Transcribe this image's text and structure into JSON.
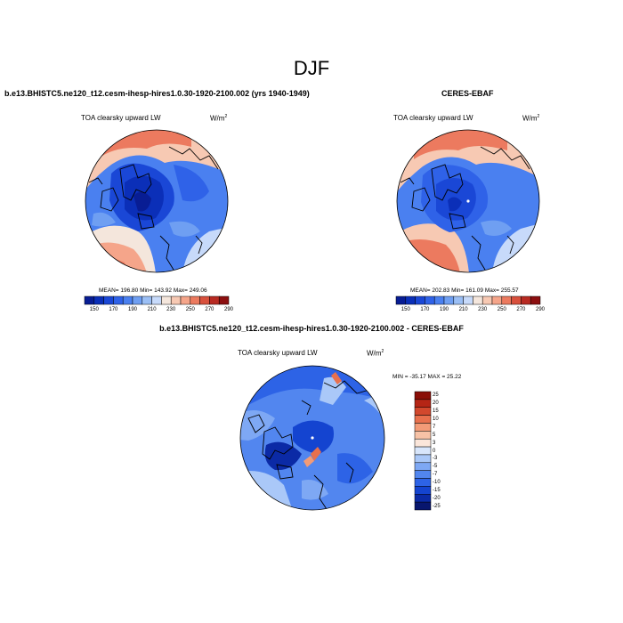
{
  "main_title": "DJF",
  "colors": {
    "abs_palette": [
      "#081d94",
      "#0b2fb8",
      "#1a47d6",
      "#2f62e8",
      "#4a80f0",
      "#6f9ff2",
      "#9bbff5",
      "#c7dafa",
      "#f4e6dc",
      "#f7c9b3",
      "#f5a58a",
      "#ec7a5f",
      "#d8503c",
      "#b82a22",
      "#8c0f10"
    ],
    "diff_palette": [
      "#08166e",
      "#0b2aa6",
      "#1444d0",
      "#2d63e6",
      "#5286ef",
      "#7ea8f4",
      "#aac8f8",
      "#d8e6fb",
      "#fbe6da",
      "#f7c2a6",
      "#f39b77",
      "#e8704d",
      "#d2482d",
      "#b52515",
      "#8a0e07"
    ]
  },
  "panels": {
    "left": {
      "title": "b.e13.BHISTC5.ne120_t12.cesm-ihesp-hires1.0.30-1920-2100.002 (yrs 1940-1949)",
      "variable": "TOA clearsky upward LW",
      "units": "W/m",
      "units_sup": "2",
      "stats": "MEAN= 196.80  Min= 143.92  Max= 249.06"
    },
    "right": {
      "title": "CERES-EBAF",
      "variable": "TOA clearsky upward LW",
      "units": "W/m",
      "units_sup": "2",
      "stats": "MEAN= 202.83  Min= 161.09  Max= 255.57"
    },
    "diff": {
      "title": "b.e13.BHISTC5.ne120_t12.cesm-ihesp-hires1.0.30-1920-2100.002 - CERES-EBAF",
      "variable": "TOA clearsky upward LW",
      "units": "W/m",
      "units_sup": "2",
      "stats": "MIN = -35.17 MAX =  25.22"
    }
  },
  "colorbar_abs": [
    "150",
    "170",
    "190",
    "210",
    "230",
    "250",
    "270",
    "290"
  ],
  "colorbar_diff": [
    "25",
    "20",
    "15",
    "10",
    "7",
    "5",
    "3",
    "0",
    "-3",
    "-5",
    "-7",
    "-10",
    "-15",
    "-20",
    "-25"
  ]
}
